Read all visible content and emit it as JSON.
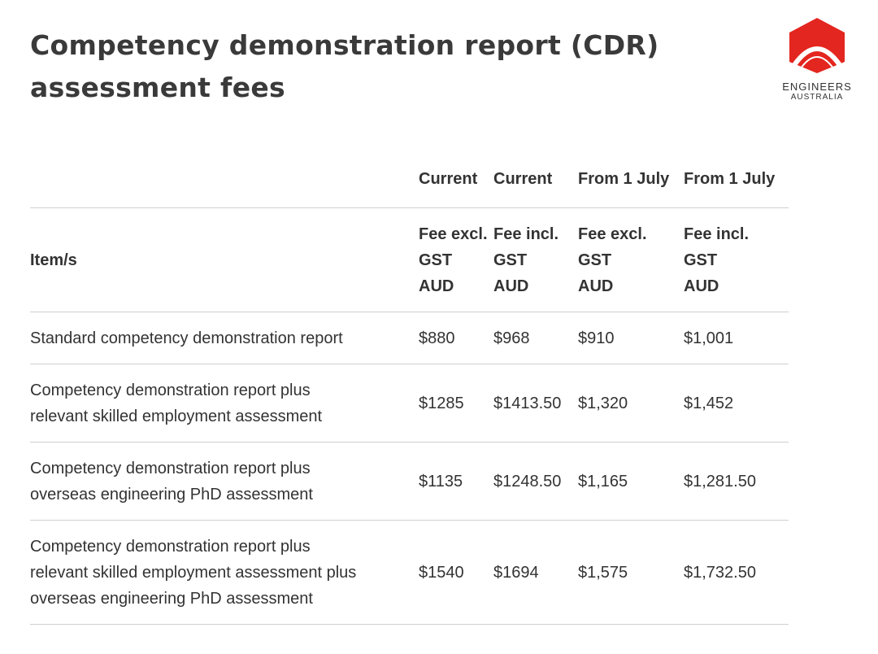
{
  "header": {
    "title": [
      "Competency demonstration report (CDR)",
      "assessment fees"
    ]
  },
  "logo": {
    "line1": "ENGINEERS",
    "line2": "AUSTRALIA"
  },
  "table": {
    "header_row1": [
      "Current",
      "Current",
      "From 1 July",
      "From 1 July"
    ],
    "header_row2": {
      "item": "Item/s",
      "fees": [
        [
          "Fee excl.",
          "GST",
          "AUD"
        ],
        [
          "Fee incl.",
          "GST",
          "AUD"
        ],
        [
          "Fee excl.",
          "GST",
          "AUD"
        ],
        [
          "Fee incl.",
          "GST",
          "AUD"
        ]
      ]
    },
    "rows": [
      {
        "item": [
          "Standard competency demonstration report"
        ],
        "values": [
          "$880",
          "$968",
          "$910",
          "$1,001"
        ]
      },
      {
        "item": [
          "Competency demonstration report plus",
          "relevant skilled employment assessment"
        ],
        "values": [
          "$1285",
          "$1413.50",
          "$1,320",
          "$1,452"
        ]
      },
      {
        "item": [
          "Competency demonstration report plus",
          "overseas engineering PhD assessment"
        ],
        "values": [
          "$1135",
          "$1248.50",
          "$1,165",
          "$1,281.50"
        ]
      },
      {
        "item": [
          "Competency demonstration report plus",
          "relevant skilled employment assessment plus",
          "overseas engineering PhD assessment"
        ],
        "values": [
          "$1540",
          "$1694",
          "$1,575",
          "$1,732.50"
        ]
      }
    ]
  }
}
